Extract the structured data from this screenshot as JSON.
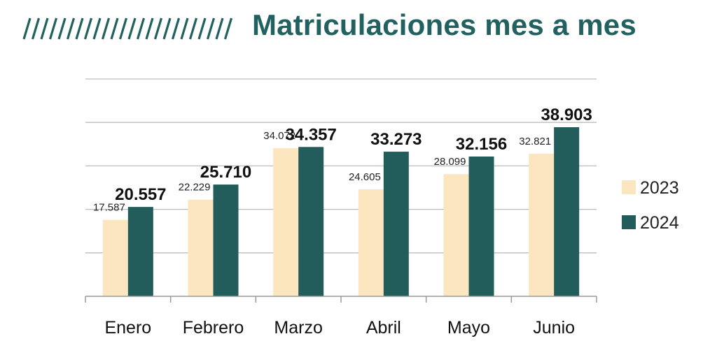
{
  "title": "Matriculaciones mes a mes",
  "colors": {
    "accent": "#21615f",
    "c2023": "#fbe6bf",
    "c2024": "#235d5b"
  },
  "chart_data": {
    "type": "bar",
    "title": "Matriculaciones mes a mes",
    "categories": [
      "Enero",
      "Febrero",
      "Marzo",
      "Abril",
      "Mayo",
      "Junio"
    ],
    "series": [
      {
        "name": "2023",
        "values": [
          17587,
          22229,
          34072,
          24605,
          28099,
          32821
        ],
        "labels": [
          "17.587",
          "22.229",
          "34.072",
          "24.605",
          "28.099",
          "32.821"
        ]
      },
      {
        "name": "2024",
        "values": [
          20557,
          25710,
          34357,
          33273,
          32156,
          38903
        ],
        "labels": [
          "20.557",
          "25.710",
          "34.357",
          "33.273",
          "32.156",
          "38.903"
        ]
      }
    ],
    "ylim": [
      0,
      50000
    ],
    "grid": true,
    "legend": "right"
  }
}
